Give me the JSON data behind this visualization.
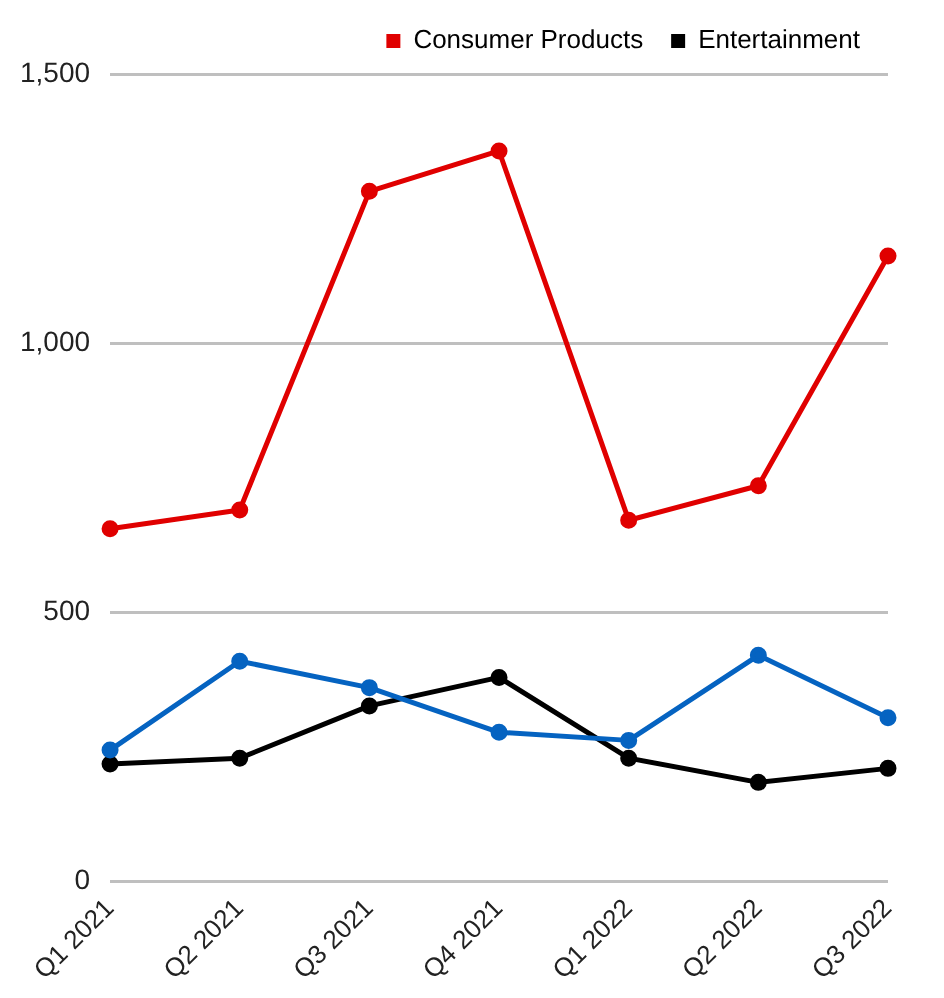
{
  "chart_data": {
    "type": "line",
    "categories": [
      "Q1 2021",
      "Q2 2021",
      "Q3 2021",
      "Q4 2021",
      "Q1 2022",
      "Q2 2022",
      "Q3 2022"
    ],
    "series": [
      {
        "color": "#0563c1",
        "values": [
          244,
          409,
          360,
          277,
          262,
          420,
          304
        ]
      },
      {
        "name": "Consumer Products",
        "color": "#e00000",
        "values": [
          655,
          690,
          1282,
          1357,
          671,
          735,
          1162
        ]
      },
      {
        "name": "Entertainment",
        "color": "#000000",
        "values": [
          218,
          229,
          326,
          379,
          229,
          184,
          210
        ]
      }
    ],
    "ylim": [
      0,
      1500
    ],
    "yticks": [
      0,
      {
        "value": 500,
        "label": "500"
      },
      {
        "value": 1000,
        "label": "1,000"
      },
      {
        "value": 1500,
        "label": "1,500"
      }
    ],
    "grid": "y",
    "legend": "top",
    "marker": "circle",
    "line_style": "solid"
  }
}
